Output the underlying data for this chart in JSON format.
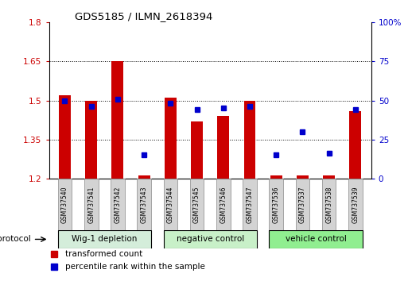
{
  "title": "GDS5185 / ILMN_2618394",
  "samples": [
    "GSM737540",
    "GSM737541",
    "GSM737542",
    "GSM737543",
    "GSM737544",
    "GSM737545",
    "GSM737546",
    "GSM737547",
    "GSM737536",
    "GSM737537",
    "GSM737538",
    "GSM737539"
  ],
  "red_values": [
    1.52,
    1.5,
    1.65,
    1.21,
    1.51,
    1.42,
    1.44,
    1.5,
    1.21,
    1.21,
    1.21,
    1.46
  ],
  "blue_values": [
    50,
    46,
    51,
    15,
    48,
    44,
    45,
    46,
    15,
    30,
    16,
    44
  ],
  "ymin": 1.2,
  "ymax": 1.8,
  "yticks": [
    1.2,
    1.35,
    1.5,
    1.65,
    1.8
  ],
  "ytick_labels": [
    "1.2",
    "1.35",
    "1.5",
    "1.65",
    "1.8"
  ],
  "y2ticks": [
    0,
    25,
    50,
    75,
    100
  ],
  "y2tick_labels": [
    "0",
    "25",
    "50",
    "75",
    "100%"
  ],
  "groups": [
    {
      "label": "Wig-1 depletion",
      "start": 0,
      "end": 4,
      "color": "#d4edda"
    },
    {
      "label": "negative control",
      "start": 4,
      "end": 8,
      "color": "#c8f0c8"
    },
    {
      "label": "vehicle control",
      "start": 8,
      "end": 12,
      "color": "#90ee90"
    }
  ],
  "protocol_label": "protocol",
  "legend_red_label": "transformed count",
  "legend_blue_label": "percentile rank within the sample",
  "red_color": "#cc0000",
  "blue_color": "#0000cc",
  "bar_width": 0.45,
  "plot_bg": "#ffffff",
  "tick_color_left": "#cc0000",
  "tick_color_right": "#0000cc",
  "grid_color": "#000000",
  "group_border_color": "#000000",
  "sample_box_color": "#d3d3d3",
  "sample_box_edge": "#888888"
}
